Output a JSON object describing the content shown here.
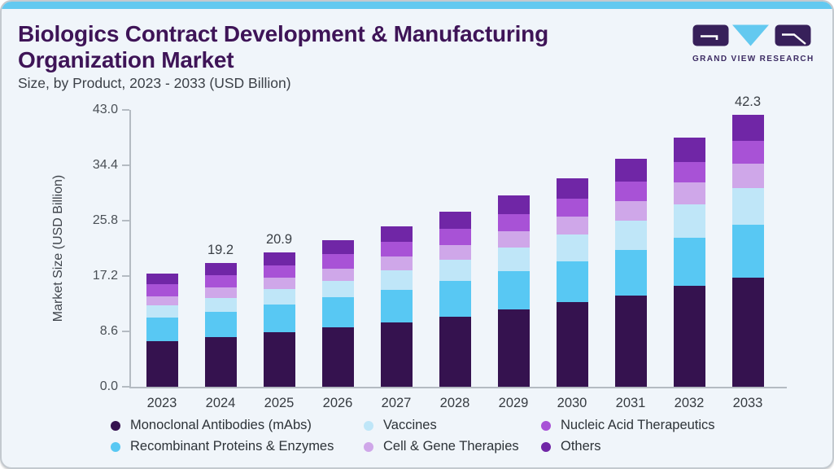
{
  "header": {
    "title": "Biologics Contract Development & Manufacturing Organization Market",
    "subtitle": "Size, by Product, 2023 - 2033 (USD Billion)",
    "logo_text": "GRAND VIEW RESEARCH"
  },
  "colors": {
    "accent_bar": "#63c9f0",
    "brand_purple": "#3e1457",
    "card_background": "#f0f5fa",
    "axis": "#b4bbc2"
  },
  "chart_data": {
    "type": "bar",
    "stacked": true,
    "title": "Biologics Contract Development & Manufacturing Organization Market Size, by Product, 2023 - 2033 (USD Billion)",
    "xlabel": "",
    "ylabel": "Market Size (USD Billion)",
    "ylim": [
      0,
      43.0
    ],
    "yticks": [
      0.0,
      8.6,
      17.2,
      25.8,
      34.4,
      43.0
    ],
    "grid": false,
    "legend_position": "bottom",
    "categories": [
      "2023",
      "2024",
      "2025",
      "2026",
      "2027",
      "2028",
      "2029",
      "2030",
      "2031",
      "2032",
      "2033"
    ],
    "series": [
      {
        "name": "Monoclonal Antibodies (mAbs)",
        "color": "#35124f",
        "values": [
          7.1,
          7.7,
          8.5,
          9.2,
          10.0,
          10.9,
          12.0,
          13.1,
          14.2,
          15.7,
          17.0
        ]
      },
      {
        "name": "Recombinant Proteins & Enzymes",
        "color": "#58c8f3",
        "values": [
          3.7,
          4.0,
          4.3,
          4.7,
          5.1,
          5.5,
          5.9,
          6.4,
          7.0,
          7.5,
          8.2
        ]
      },
      {
        "name": "Vaccines",
        "color": "#bfe6f8",
        "values": [
          1.9,
          2.1,
          2.4,
          2.6,
          3.0,
          3.3,
          3.7,
          4.1,
          4.6,
          5.1,
          5.7
        ]
      },
      {
        "name": "Cell & Gene Therapies",
        "color": "#cfa7e9",
        "values": [
          1.4,
          1.6,
          1.7,
          1.9,
          2.1,
          2.3,
          2.6,
          2.8,
          3.1,
          3.4,
          3.8
        ]
      },
      {
        "name": "Nucleic Acid Therapeutics",
        "color": "#a852d6",
        "values": [
          1.8,
          1.9,
          2.0,
          2.2,
          2.3,
          2.5,
          2.6,
          2.8,
          3.0,
          3.2,
          3.5
        ]
      },
      {
        "name": "Others",
        "color": "#7026a6",
        "values": [
          1.7,
          1.9,
          2.0,
          2.2,
          2.4,
          2.7,
          2.9,
          3.2,
          3.5,
          3.8,
          4.1
        ]
      }
    ],
    "totals": [
      17.6,
      19.2,
      20.9,
      22.8,
      24.9,
      27.2,
      29.7,
      32.4,
      35.4,
      38.7,
      42.3
    ],
    "bar_labels": [
      "",
      "19.2",
      "20.9",
      "",
      "",
      "",
      "",
      "",
      "",
      "",
      "42.3"
    ]
  },
  "legend": {
    "items": [
      {
        "label": "Monoclonal Antibodies (mAbs)",
        "color": "#35124f"
      },
      {
        "label": "Vaccines",
        "color": "#bfe6f8"
      },
      {
        "label": "Nucleic Acid Therapeutics",
        "color": "#a852d6"
      },
      {
        "label": "Recombinant Proteins & Enzymes",
        "color": "#58c8f3"
      },
      {
        "label": "Cell & Gene Therapies",
        "color": "#cfa7e9"
      },
      {
        "label": "Others",
        "color": "#7026a6"
      }
    ]
  }
}
